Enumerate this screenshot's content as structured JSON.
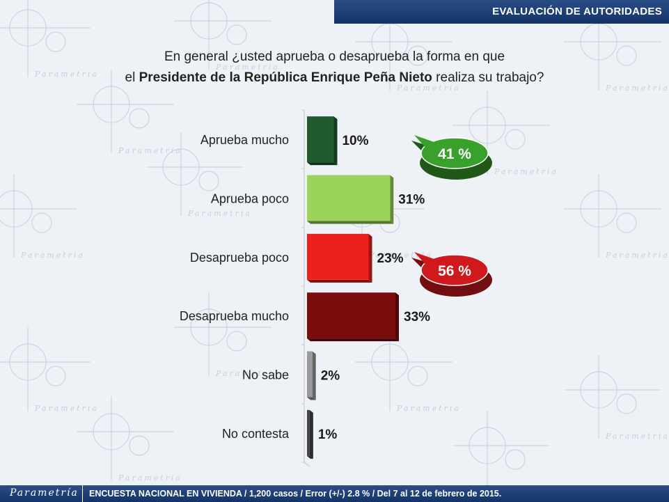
{
  "header": {
    "title": "EVALUACIÓN DE AUTORIDADES"
  },
  "question": {
    "line1": "En general ¿usted aprueba o desaprueba la forma en que",
    "line2_prefix": "el ",
    "line2_bold": "Presidente de la República Enrique Peña Nieto",
    "line2_suffix": " realiza su trabajo?"
  },
  "watermark": "Parametria",
  "footer": {
    "brand": "Parametría",
    "note": "ENCUESTA NACIONAL EN VIVIENDA / 1,200 casos / Error (+/-) 2.8 % / Del 7 al 12 de febrero de 2015."
  },
  "chart_data": {
    "type": "bar",
    "orientation": "horizontal",
    "categories": [
      "Aprueba mucho",
      "Aprueba poco",
      "Desaprueba poco",
      "Desaprueba mucho",
      "No sabe",
      "No contesta"
    ],
    "values": [
      10,
      31,
      23,
      33,
      2,
      1
    ],
    "value_labels": [
      "10%",
      "31%",
      "23%",
      "33%",
      "2%",
      "1%"
    ],
    "colors": [
      "#1f5b2f",
      "#9bd35a",
      "#ee1f1f",
      "#7a0d0d",
      "#9a9a9a",
      "#444444"
    ],
    "xlim": [
      0,
      45
    ],
    "grid": false,
    "annotations": [
      {
        "label": "41 %",
        "color": "#3aa02c",
        "groups": [
          0,
          1
        ]
      },
      {
        "label": "56 %",
        "color": "#d0191c",
        "groups": [
          2,
          3
        ]
      }
    ]
  }
}
